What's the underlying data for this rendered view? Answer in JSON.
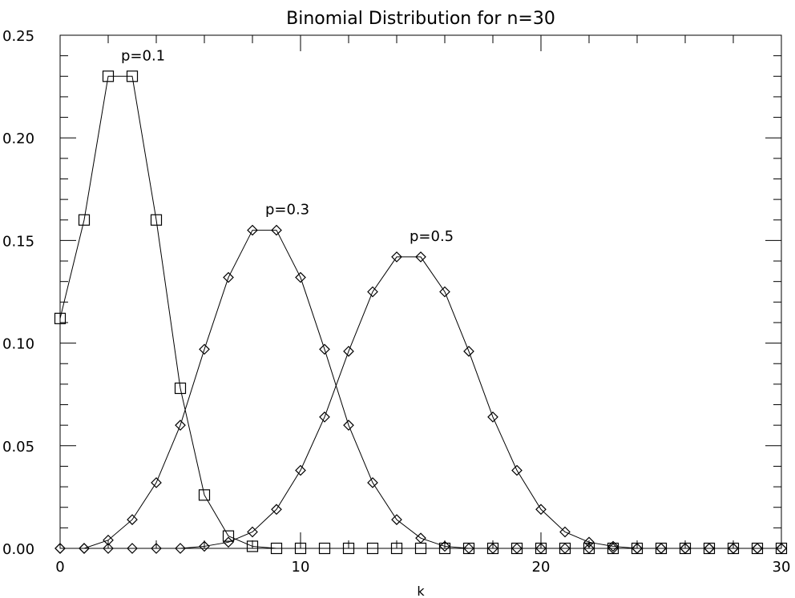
{
  "chart_data": {
    "type": "line",
    "title": "Binomial Distribution for n=30",
    "xlabel": "k",
    "ylabel": "",
    "xlim": [
      0,
      30
    ],
    "ylim": [
      0,
      0.25
    ],
    "x_ticks": [
      "0",
      "10",
      "20",
      "30"
    ],
    "y_ticks": [
      "0.00",
      "0.05",
      "0.10",
      "0.15",
      "0.20",
      "0.25"
    ],
    "grid": false,
    "x": [
      0,
      1,
      2,
      3,
      4,
      5,
      6,
      7,
      8,
      9,
      10,
      11,
      12,
      13,
      14,
      15,
      16,
      17,
      18,
      19,
      20,
      21,
      22,
      23,
      24,
      25,
      26,
      27,
      28,
      29,
      30
    ],
    "series": [
      {
        "annotation": "p=0.1",
        "marker": "square",
        "values": [
          0.112,
          0.16,
          0.23,
          0.23,
          0.16,
          0.078,
          0.026,
          0.006,
          0.001,
          0,
          0,
          0,
          0,
          0,
          0,
          0,
          0,
          0,
          0,
          0,
          0,
          0,
          0,
          0,
          0,
          0,
          0,
          0,
          0,
          0,
          0
        ]
      },
      {
        "annotation": "p=0.3",
        "marker": "diamond",
        "values": [
          0.0,
          0.0,
          0.004,
          0.014,
          0.032,
          0.06,
          0.097,
          0.132,
          0.155,
          0.155,
          0.132,
          0.097,
          0.06,
          0.032,
          0.014,
          0.005,
          0.001,
          0.0,
          0,
          0,
          0,
          0,
          0,
          0,
          0,
          0,
          0,
          0,
          0,
          0,
          0
        ]
      },
      {
        "annotation": "p=0.5",
        "marker": "diamond",
        "values": [
          0,
          0,
          0,
          0,
          0,
          0.0,
          0.001,
          0.003,
          0.008,
          0.019,
          0.038,
          0.064,
          0.096,
          0.125,
          0.142,
          0.142,
          0.125,
          0.096,
          0.064,
          0.038,
          0.019,
          0.008,
          0.003,
          0.001,
          0.0,
          0,
          0,
          0,
          0,
          0,
          0
        ]
      }
    ]
  }
}
